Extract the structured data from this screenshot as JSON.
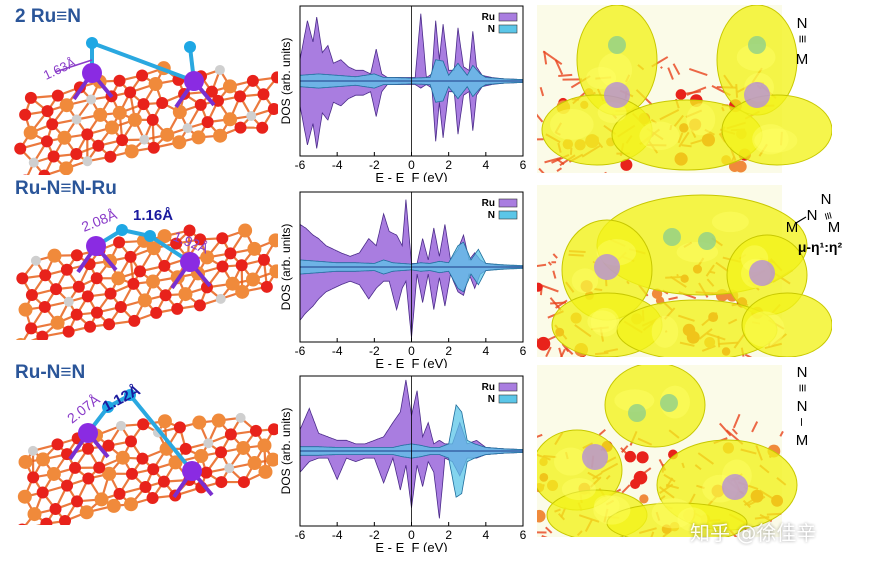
{
  "rows": [
    {
      "title": "2 Ru≡N",
      "bonds": [
        "1.63Å"
      ],
      "motif": [
        "N",
        "≡",
        "M"
      ],
      "motif_label": ""
    },
    {
      "title": "Ru-N≡N-Ru",
      "bonds": [
        "2.08Å",
        "1.16Å",
        "1.92Å"
      ],
      "motif": [
        "N",
        "≡",
        "N",
        "M",
        "M"
      ],
      "motif_label": "μ-η¹:η²"
    },
    {
      "title": "Ru-N≡N",
      "bonds": [
        "2.07Å",
        "1.12Å"
      ],
      "motif": [
        "N",
        "≡",
        "N",
        "–",
        "M"
      ],
      "motif_label": ""
    }
  ],
  "chart_data": [
    {
      "type": "area",
      "xlabel": "E - E_F (eV)",
      "ylabel": "DOS (arb. units)",
      "xlim": [
        -6,
        6
      ],
      "xticks": [
        -6,
        -4,
        -2,
        0,
        2,
        4,
        6
      ],
      "ylim": [
        -1,
        1
      ],
      "yticks_shown": false,
      "fermi_level": 0,
      "legend_position": "top-right",
      "series": [
        {
          "name": "Ru",
          "color": "#a97de0",
          "x": [
            -6,
            -5.6,
            -5.3,
            -5.1,
            -4.8,
            -4.5,
            -4.2,
            -3.8,
            -3.4,
            -3.0,
            -2.6,
            -2.2,
            -1.9,
            -1.6,
            -1.3,
            -0.9,
            -0.5,
            -0.2,
            0.2,
            0.5,
            0.8,
            1.1,
            1.3,
            1.5,
            1.7,
            2.0,
            2.3,
            2.5,
            2.8,
            3.1,
            3.3,
            3.5,
            3.8,
            4.3,
            5,
            6
          ],
          "up": [
            0.3,
            0.85,
            0.55,
            0.9,
            0.4,
            0.5,
            0.25,
            0.3,
            0.2,
            0.15,
            0.15,
            0.1,
            0.45,
            0.1,
            0.05,
            0.05,
            0.05,
            0.05,
            0.05,
            0.95,
            0.05,
            0.1,
            0.85,
            0.3,
            0.8,
            0.15,
            0.15,
            0.75,
            0.2,
            0.15,
            0.7,
            0.2,
            0.08,
            0.05,
            0.03,
            0.02
          ],
          "down": [
            0.35,
            0.9,
            0.6,
            0.95,
            0.45,
            0.55,
            0.3,
            0.35,
            0.25,
            0.2,
            0.2,
            0.15,
            0.5,
            0.15,
            0.05,
            0.05,
            0.05,
            0.05,
            0.05,
            0.1,
            0.05,
            0.1,
            0.85,
            0.3,
            0.8,
            0.15,
            0.15,
            0.75,
            0.2,
            0.15,
            0.7,
            0.2,
            0.08,
            0.05,
            0.03,
            0.02
          ]
        },
        {
          "name": "N",
          "color": "#5bc6e8",
          "x": [
            -6,
            -5,
            -4,
            -3,
            -2,
            -1.5,
            -1,
            0,
            1,
            1.3,
            1.7,
            2,
            2.5,
            3,
            3.3,
            3.7,
            4,
            5,
            6
          ],
          "up": [
            0.08,
            0.1,
            0.08,
            0.06,
            0.1,
            0.05,
            0.05,
            0.04,
            0.05,
            0.3,
            0.28,
            0.08,
            0.25,
            0.08,
            0.22,
            0.1,
            0.05,
            0.03,
            0.02
          ],
          "down": [
            0.08,
            0.1,
            0.08,
            0.06,
            0.1,
            0.05,
            0.05,
            0.04,
            0.05,
            0.3,
            0.28,
            0.08,
            0.25,
            0.08,
            0.22,
            0.1,
            0.05,
            0.03,
            0.02
          ]
        }
      ]
    },
    {
      "type": "area",
      "xlabel": "E - E_F (eV)",
      "ylabel": "DOS (arb. units)",
      "xlim": [
        -6,
        6
      ],
      "xticks": [
        -6,
        -4,
        -2,
        0,
        2,
        4,
        6
      ],
      "ylim": [
        -1,
        1
      ],
      "yticks_shown": false,
      "fermi_level": 0,
      "legend_position": "top-right",
      "series": [
        {
          "name": "Ru",
          "color": "#a97de0",
          "x": [
            -6,
            -5.7,
            -5.3,
            -5,
            -4.6,
            -4.2,
            -3.8,
            -3.3,
            -2.8,
            -2.3,
            -1.9,
            -1.5,
            -1.2,
            -0.8,
            -0.5,
            -0.3,
            0,
            0.3,
            0.6,
            0.9,
            1.2,
            1.5,
            1.8,
            2.1,
            2.5,
            2.8,
            3.1,
            3.4,
            3.7,
            4,
            4.5,
            5,
            6
          ],
          "up": [
            0.6,
            0.55,
            0.45,
            0.4,
            0.3,
            0.25,
            0.2,
            0.15,
            0.2,
            0.4,
            0.3,
            0.75,
            0.5,
            0.45,
            0.3,
            0.95,
            0.05,
            0.05,
            0.4,
            0.1,
            0.55,
            0.15,
            0.6,
            0.1,
            0.25,
            0.45,
            0.1,
            0.2,
            0.1,
            0.05,
            0.03,
            0.02,
            0.01
          ],
          "down": [
            0.75,
            0.65,
            0.55,
            0.45,
            0.35,
            0.3,
            0.25,
            0.2,
            0.25,
            0.45,
            0.3,
            0.2,
            0.2,
            0.6,
            0.3,
            0.2,
            1.0,
            0.1,
            0.5,
            0.1,
            0.6,
            0.15,
            0.55,
            0.1,
            0.35,
            0.4,
            0.1,
            0.3,
            0.1,
            0.05,
            0.03,
            0.02,
            0.01
          ]
        },
        {
          "name": "N",
          "color": "#5bc6e8",
          "x": [
            -6,
            -5,
            -4,
            -3,
            -2,
            -1.5,
            -1,
            -0.5,
            0,
            0.5,
            1,
            1.5,
            2,
            2.5,
            2.8,
            3.2,
            3.6,
            4,
            5,
            6
          ],
          "up": [
            0.1,
            0.08,
            0.06,
            0.06,
            0.05,
            0.1,
            0.06,
            0.05,
            0.04,
            0.06,
            0.05,
            0.08,
            0.06,
            0.3,
            0.35,
            0.1,
            0.25,
            0.05,
            0.03,
            0.02
          ],
          "down": [
            0.1,
            0.08,
            0.06,
            0.06,
            0.05,
            0.1,
            0.06,
            0.05,
            0.04,
            0.06,
            0.05,
            0.08,
            0.06,
            0.3,
            0.35,
            0.1,
            0.25,
            0.05,
            0.03,
            0.02
          ]
        }
      ]
    },
    {
      "type": "area",
      "xlabel": "E - E_F (eV)",
      "ylabel": "DOS (arb. units)",
      "xlim": [
        -6,
        6
      ],
      "xticks": [
        -6,
        -4,
        -2,
        0,
        2,
        4,
        6
      ],
      "ylim": [
        -1,
        1
      ],
      "yticks_shown": false,
      "fermi_level": 0,
      "legend_position": "top-right",
      "series": [
        {
          "name": "Ru",
          "color": "#a97de0",
          "x": [
            -6,
            -5.5,
            -5,
            -4.5,
            -4,
            -3.5,
            -3,
            -2.5,
            -2,
            -1.5,
            -1,
            -0.6,
            -0.3,
            0,
            0.3,
            0.6,
            0.9,
            1.2,
            1.5,
            1.8,
            2.2,
            2.6,
            3,
            3.5,
            4,
            5,
            6
          ],
          "up": [
            0.3,
            0.6,
            0.25,
            0.2,
            0.15,
            0.15,
            0.1,
            0.1,
            0.15,
            0.2,
            0.4,
            0.55,
            1.0,
            0.5,
            0.85,
            0.2,
            0.4,
            0.1,
            0.15,
            0.1,
            0.1,
            0.4,
            0.1,
            0.15,
            0.05,
            0.03,
            0.02
          ],
          "down": [
            0.3,
            0.15,
            0.1,
            0.1,
            0.4,
            0.1,
            0.15,
            0.1,
            0.1,
            0.45,
            0.1,
            0.55,
            0.2,
            0.8,
            0.2,
            0.5,
            0.15,
            0.3,
            0.95,
            0.1,
            0.15,
            0.35,
            0.1,
            0.1,
            0.05,
            0.03,
            0.02
          ]
        },
        {
          "name": "N",
          "color": "#5bc6e8",
          "x": [
            -6,
            -5,
            -4,
            -3,
            -2,
            -1,
            -0.5,
            0,
            0.5,
            1,
            1.5,
            2,
            2.4,
            2.7,
            3,
            3.4,
            4,
            5,
            6
          ],
          "up": [
            0.06,
            0.06,
            0.05,
            0.05,
            0.05,
            0.05,
            0.08,
            0.1,
            0.08,
            0.05,
            0.05,
            0.1,
            0.65,
            0.55,
            0.15,
            0.1,
            0.05,
            0.03,
            0.02
          ],
          "down": [
            0.06,
            0.06,
            0.05,
            0.05,
            0.05,
            0.05,
            0.08,
            0.1,
            0.08,
            0.05,
            0.05,
            0.1,
            0.65,
            0.6,
            0.15,
            0.1,
            0.05,
            0.03,
            0.02
          ]
        }
      ]
    }
  ],
  "watermark": "知乎 @徐佳辛"
}
